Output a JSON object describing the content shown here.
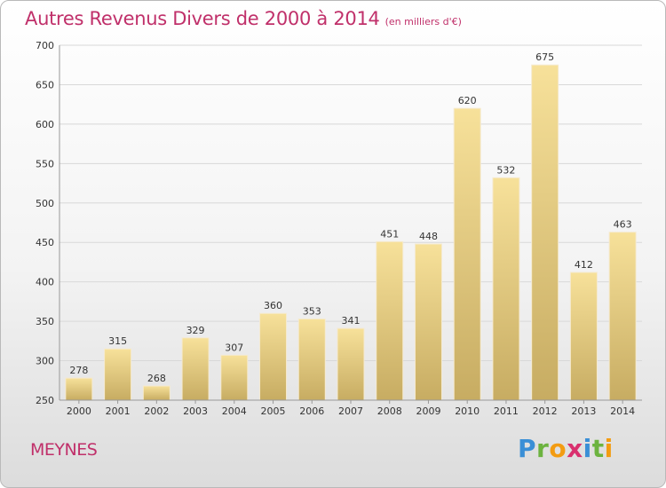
{
  "title": "Autres Revenus Divers de 2000 à 2014",
  "subtitle": "(en milliers d'€)",
  "location": "MEYNES",
  "logo": {
    "letters": [
      "P",
      "r",
      "o",
      "x",
      "i",
      "t",
      "i"
    ],
    "colors": [
      "#3a8fd6",
      "#6cb33f",
      "#f39c12",
      "#d9306e",
      "#3a8fd6",
      "#6cb33f",
      "#f39c12"
    ]
  },
  "chart_data": {
    "type": "bar",
    "title": "Autres Revenus Divers de 2000 à 2014",
    "subtitle": "(en milliers d'€)",
    "categories": [
      "2000",
      "2001",
      "2002",
      "2003",
      "2004",
      "2005",
      "2006",
      "2007",
      "2008",
      "2009",
      "2010",
      "2011",
      "2012",
      "2013",
      "2014"
    ],
    "values": [
      278,
      315,
      268,
      329,
      307,
      360,
      353,
      341,
      451,
      448,
      620,
      532,
      675,
      412,
      463
    ],
    "ylim": [
      250,
      700
    ],
    "yticks": [
      250,
      300,
      350,
      400,
      450,
      500,
      550,
      600,
      650,
      700
    ],
    "grid": true,
    "data_labels": true,
    "bar_color_top": "#f7e19a",
    "bar_color_bottom": "#c7ac62",
    "grid_color": "#d8d8d8"
  }
}
